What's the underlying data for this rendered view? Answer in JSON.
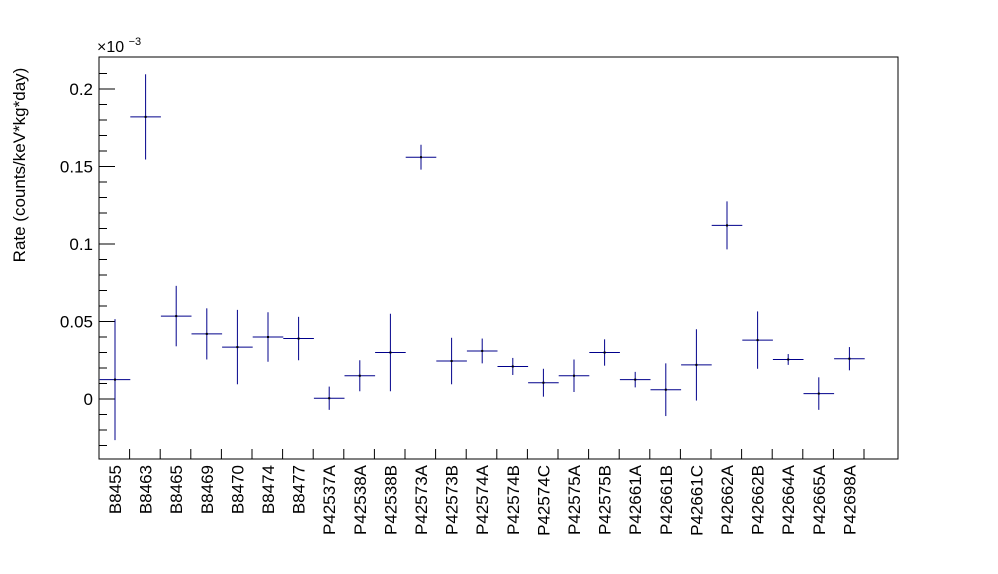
{
  "chart_data": {
    "type": "scatter",
    "title": "",
    "xlabel": "",
    "ylabel": "Rate (counts/keV*kg*day)",
    "exponent_label": "×10",
    "exponent_power": "−3",
    "ylim": [
      -0.038,
      0.22
    ],
    "yticks": [
      0,
      0.05,
      0.1,
      0.15,
      0.2
    ],
    "ytick_labels": [
      "0",
      "0.05",
      "0.1",
      "0.15",
      "0.2"
    ],
    "categories": [
      "B8455",
      "B8463",
      "B8465",
      "B8469",
      "B8470",
      "B8474",
      "B8477",
      "P42537A",
      "P42538A",
      "P42538B",
      "P42573A",
      "P42573B",
      "P42574A",
      "P42574B",
      "P42574C",
      "P42575A",
      "P42575B",
      "P42661A",
      "P42661B",
      "P42661C",
      "P42662A",
      "P42662B",
      "P42664A",
      "P42665A",
      "P42698A"
    ],
    "series": [
      {
        "name": "Rate",
        "values": [
          0.0125,
          0.182,
          0.0535,
          0.042,
          0.0335,
          0.04,
          0.039,
          0.0005,
          0.015,
          0.03,
          0.156,
          0.0245,
          0.031,
          0.021,
          0.0105,
          0.015,
          0.03,
          0.0125,
          0.006,
          0.022,
          0.112,
          0.038,
          0.0255,
          0.0035,
          0.026
        ],
        "errors": [
          0.039,
          0.0275,
          0.0195,
          0.0165,
          0.024,
          0.016,
          0.014,
          0.0075,
          0.01,
          0.025,
          0.008,
          0.015,
          0.008,
          0.0055,
          0.009,
          0.0105,
          0.0085,
          0.005,
          0.017,
          0.023,
          0.0155,
          0.0185,
          0.0035,
          0.0105,
          0.0075
        ]
      }
    ]
  }
}
